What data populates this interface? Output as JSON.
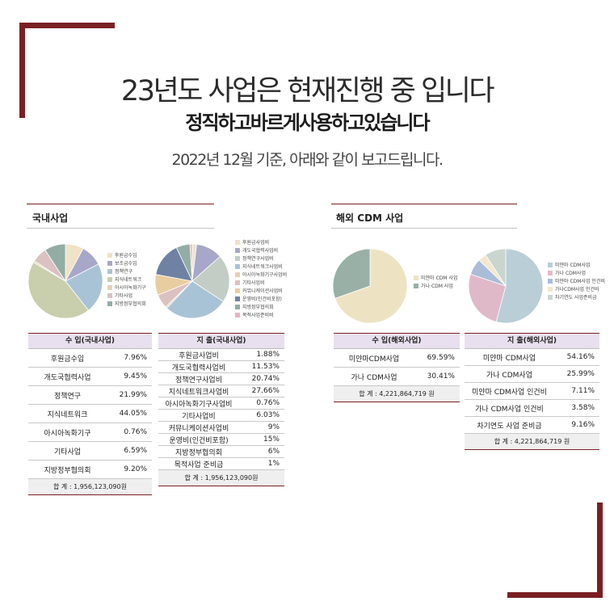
{
  "header": {
    "title": "23년도 사업은 현재진행 중 입니다",
    "subtitle_bold": "정직하고바르게사용하고있습니다",
    "note": "2022년 12월 기준, 아래와 같이 보고드립니다."
  },
  "sections": {
    "domestic_title": "국내사업",
    "overseas_title": "해외 CDM 사업"
  },
  "colors": {
    "accent": "#7a2024",
    "table_header_bg": "#e8e0ee",
    "total_bg": "#efefef"
  },
  "chart_data": [
    {
      "type": "pie",
      "id": "domestic-income",
      "categories": [
        "후원금수입",
        "보조금수입",
        "정책연구",
        "지식네트워크",
        "아시아녹화기구",
        "기타사업",
        "지방정부협의회"
      ],
      "values": [
        7.96,
        9.45,
        21.99,
        44.05,
        0.76,
        6.59,
        9.2
      ],
      "colors": [
        "#efe2c6",
        "#a7a7c9",
        "#a9c3d6",
        "#c9cfad",
        "#e6d2b8",
        "#dbc1c1",
        "#93ada4"
      ]
    },
    {
      "type": "pie",
      "id": "domestic-expense",
      "categories": [
        "후원금사업비",
        "개도국협력사업비",
        "정책연구사업비",
        "지식네트워크사업비",
        "아시아녹화기구사업비",
        "기타사업비",
        "커뮤니케이션사업비",
        "운영비(인건비포함)",
        "지방정부협의회",
        "목적사업준비비"
      ],
      "values": [
        1.88,
        11.53,
        20.74,
        27.66,
        0.76,
        6.03,
        9,
        15,
        6,
        1
      ],
      "colors": [
        "#efe2c6",
        "#a7a7c9",
        "#c3cdc6",
        "#a9c3d6",
        "#e6d2b8",
        "#dbc1c1",
        "#e8cda0",
        "#6f82a3",
        "#93ada4",
        "#e2b4c6"
      ]
    },
    {
      "type": "pie",
      "id": "overseas-income",
      "categories": [
        "미얀마 CDM 사업",
        "가나 CDM 사업"
      ],
      "values": [
        69.59,
        30.41
      ],
      "colors": [
        "#ede3c3",
        "#98b0a6"
      ]
    },
    {
      "type": "pie",
      "id": "overseas-expense",
      "categories": [
        "미얀마 CDM사업",
        "가나 CDM사업",
        "미얀마 CDM사업 인건비",
        "가나CDM사업 인건비",
        "차기연도 사업준비금"
      ],
      "values": [
        54.16,
        25.99,
        7.11,
        3.58,
        9.16
      ],
      "colors": [
        "#b9ced7",
        "#dfb9c8",
        "#a9bdd9",
        "#f3e8cd",
        "#c9d6cf"
      ]
    }
  ],
  "legends": {
    "domestic_income": [
      "후원금수입",
      "보조금수입",
      "정책연구",
      "지식네트워크",
      "아시아녹화기구",
      "기타사업",
      "지방정부협의회"
    ],
    "domestic_expense": [
      "후원금사업비",
      "개도국협력사업비",
      "정책연구사업비",
      "지식네트워크사업비",
      "아시아녹화기구사업비",
      "기타사업비",
      "커뮤니케이션사업비",
      "운영비(인건비포함)",
      "지방정부협의회",
      "목적사업준비비"
    ],
    "overseas_income": [
      "미얀마 CDM 사업",
      "가나 CDM 사업"
    ],
    "overseas_expense": [
      "미얀마 CDM사업",
      "가나 CDM사업",
      "미얀마 CDM사업 인건비",
      "가나CDM사업 인건비",
      "차기연도 사업준비금"
    ]
  },
  "tables": {
    "domestic_income": {
      "header": "수 입(국내사업)",
      "rows": [
        {
          "label": "후원금수입",
          "value": "7.96%"
        },
        {
          "label": "개도국협력사업",
          "value": "9.45%"
        },
        {
          "label": "정책연구",
          "value": "21.99%"
        },
        {
          "label": "지식네트워크",
          "value": "44.05%"
        },
        {
          "label": "아시아녹화기구",
          "value": "0.76%"
        },
        {
          "label": "기타사업",
          "value": "6.59%"
        },
        {
          "label": "지방정부협의회",
          "value": "9.20%"
        }
      ],
      "total": "합 계 : 1,956,123,090원"
    },
    "domestic_expense": {
      "header": "지 출(국내사업)",
      "rows": [
        {
          "label": "후원금사업비",
          "value": "1.88%"
        },
        {
          "label": "개도국협력사업비",
          "value": "11.53%"
        },
        {
          "label": "정책연구사업비",
          "value": "20.74%"
        },
        {
          "label": "지식네트워크사업비",
          "value": "27.66%"
        },
        {
          "label": "아시아녹화기구사업비",
          "value": "0.76%"
        },
        {
          "label": "기타사업비",
          "value": "6.03%"
        },
        {
          "label": "커뮤니케이션사업비",
          "value": "9%"
        },
        {
          "label": "운영비(인건비포함)",
          "value": "15%"
        },
        {
          "label": "지방정부협의회",
          "value": "6%"
        },
        {
          "label": "목적사업 준비금",
          "value": "1%"
        }
      ],
      "total": "합 계 : 1,956,123,090원"
    },
    "overseas_income": {
      "header": "수 입(해외사업)",
      "rows": [
        {
          "label": "미얀마CDM사업",
          "value": "69.59%"
        },
        {
          "label": "가나 CDM사업",
          "value": "30.41%"
        }
      ],
      "total": "합 계 : 4,221,864,719 원"
    },
    "overseas_expense": {
      "header": "지 출(해외사업)",
      "rows": [
        {
          "label": "미얀마 CDM사업",
          "value": "54.16%"
        },
        {
          "label": "가나 CDM사업",
          "value": "25.99%"
        },
        {
          "label": "미얀마 CDM사업 인건비",
          "value": "7.11%"
        },
        {
          "label": "가나 CDM사업 인건비",
          "value": "3.58%"
        },
        {
          "label": "차기연도 사업 준비금",
          "value": "9.16%"
        }
      ],
      "total": "합 계 : 4,221,864,719 원"
    }
  }
}
